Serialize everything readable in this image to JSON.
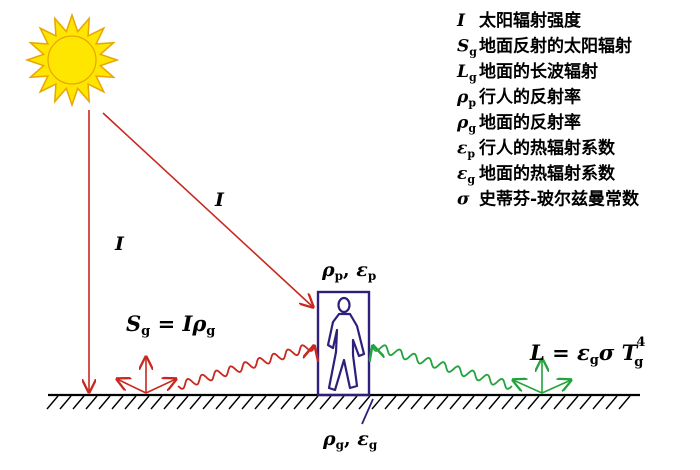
{
  "legend": [
    {
      "symbol": "I",
      "sub": "",
      "text": "太阳辐射强度"
    },
    {
      "symbol": "S",
      "sub": "g",
      "text": "地面反射的太阳辐射"
    },
    {
      "symbol": "L",
      "sub": "g",
      "text": "地面的长波辐射"
    },
    {
      "symbol": "ρ",
      "sub": "p",
      "text": "行人的反射率"
    },
    {
      "symbol": "ρ",
      "sub": "g",
      "text": "地面的反射率"
    },
    {
      "symbol": "ε",
      "sub": "p",
      "text": "行人的热辐射系数"
    },
    {
      "symbol": "ε",
      "sub": "g",
      "text": "地面的热辐射系数"
    },
    {
      "symbol": "σ",
      "sub": "",
      "text": "史蒂芬-玻尔兹曼常数"
    }
  ],
  "labels": {
    "beam_direct": "I",
    "beam_slant": "I",
    "pedestrian_top_rho": "ρ",
    "pedestrian_top_rho_sub": "p",
    "pedestrian_top_sep": ", ",
    "pedestrian_top_eps": "ε",
    "pedestrian_top_eps_sub": "p",
    "ground_rho": "ρ",
    "ground_rho_sub": "g",
    "ground_sep": ", ",
    "ground_eps": "ε",
    "ground_eps_sub": "g",
    "sg_S": "S",
    "sg_S_sub": "g",
    "sg_eq": " = I",
    "sg_rho": "ρ",
    "sg_rho_sub": "g",
    "lg_L": "L",
    "lg_eq": " = ",
    "lg_eps": "ε",
    "lg_eps_sub": "g",
    "lg_sigma": "σ",
    "lg_T": " T",
    "lg_T_sub": "g",
    "lg_T_sup": "4"
  },
  "colors": {
    "sun_fill": "#FFE600",
    "sun_stroke": "#E7A500",
    "solar_ray": "#C8281E",
    "longwave_ray": "#22A33B",
    "pedestrian_box": "#2E1F7A",
    "ground": "#000000"
  }
}
